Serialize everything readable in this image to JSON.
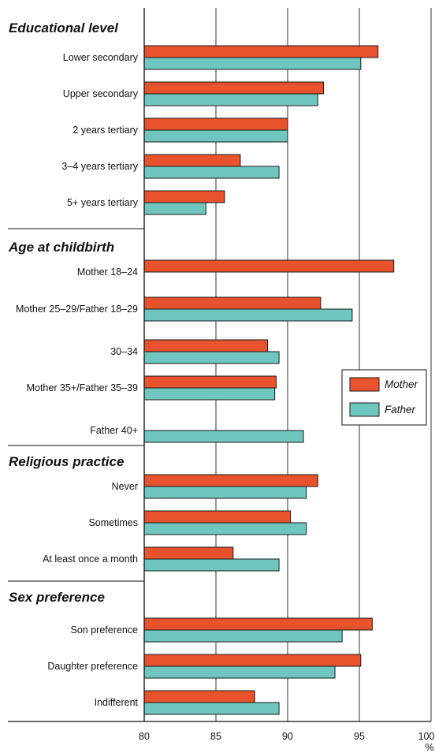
{
  "chart_data": {
    "type": "bar",
    "orientation": "horizontal",
    "x_unit": "%",
    "xlim": [
      80,
      100
    ],
    "xticks": [
      80,
      85,
      90,
      95,
      100
    ],
    "grid": true,
    "legend_position": "right",
    "colors": {
      "Mother": "#E8532E",
      "Father": "#6FC6BE"
    },
    "series": [
      {
        "name": "Mother"
      },
      {
        "name": "Father"
      }
    ],
    "groups": [
      {
        "title": "Educational level",
        "categories": [
          {
            "label": "Lower secondary",
            "Mother": 96.3,
            "Father": 95.1
          },
          {
            "label": "Upper secondary",
            "Mother": 92.5,
            "Father": 92.1
          },
          {
            "label": "2 years tertiary",
            "Mother": 90.0,
            "Father": 90.0
          },
          {
            "label": "3–4 years tertiary",
            "Mother": 86.7,
            "Father": 89.4
          },
          {
            "label": "5+ years tertiary",
            "Mother": 85.6,
            "Father": 84.3
          }
        ]
      },
      {
        "title": "Age at childbirth",
        "categories": [
          {
            "label": "Mother 18–24",
            "Mother": 97.4,
            "Father": null
          },
          {
            "label": "Mother 25–29/Father 18–29",
            "Mother": 92.3,
            "Father": 94.5
          },
          {
            "label": "30–34",
            "Mother": 88.6,
            "Father": 89.4
          },
          {
            "label": "Mother 35+/Father 35–39",
            "Mother": 89.2,
            "Father": 89.1
          },
          {
            "label": "Father 40+",
            "Mother": null,
            "Father": 91.1
          }
        ]
      },
      {
        "title": "Religious practice",
        "categories": [
          {
            "label": "Never",
            "Mother": 92.1,
            "Father": 91.3
          },
          {
            "label": "Sometimes",
            "Mother": 90.2,
            "Father": 91.3
          },
          {
            "label": "At least once a month",
            "Mother": 86.2,
            "Father": 89.4
          }
        ]
      },
      {
        "title": "Sex preference",
        "categories": [
          {
            "label": "Son preference",
            "Mother": 95.9,
            "Father": 93.8
          },
          {
            "label": "Daughter preference",
            "Mother": 95.1,
            "Father": 93.3
          },
          {
            "label": "Indifferent",
            "Mother": 87.7,
            "Father": 89.4
          }
        ]
      }
    ]
  }
}
